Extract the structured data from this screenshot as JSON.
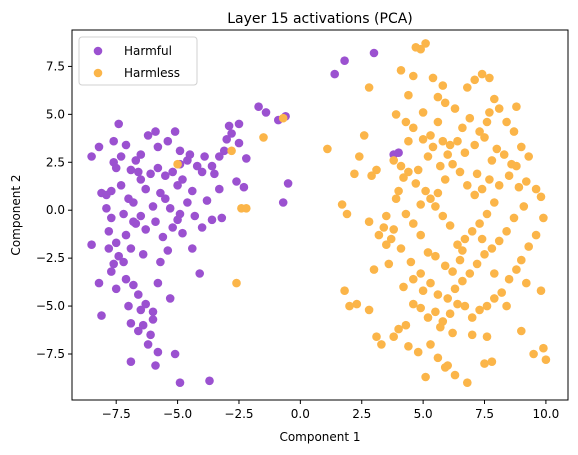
{
  "chart_data": {
    "type": "scatter",
    "title": "Layer 15 activations (PCA)",
    "xlabel": "Component 1",
    "ylabel": "Component 2",
    "xlim": [
      -9.3,
      10.9
    ],
    "ylim": [
      -9.9,
      9.4
    ],
    "xticks": [
      -7.5,
      -5.0,
      -2.5,
      0.0,
      2.5,
      5.0,
      7.5,
      10.0
    ],
    "xtick_labels": [
      "−7.5",
      "−5.0",
      "−2.5",
      "0.0",
      "2.5",
      "5.0",
      "7.5",
      "10.0"
    ],
    "yticks": [
      -7.5,
      -5.0,
      -2.5,
      0.0,
      2.5,
      5.0,
      7.5
    ],
    "ytick_labels": [
      "−7.5",
      "−5.0",
      "−2.5",
      "0.0",
      "2.5",
      "5.0",
      "7.5"
    ],
    "grid": false,
    "legend_position": "top-left",
    "series": [
      {
        "name": "Harmful",
        "color": "#9b51d0",
        "points": [
          [
            -8.5,
            2.8
          ],
          [
            -8.2,
            3.3
          ],
          [
            -8.1,
            0.9
          ],
          [
            -7.9,
            0.8
          ],
          [
            -7.7,
            1.0
          ],
          [
            -7.6,
            2.5
          ],
          [
            -7.5,
            2.2
          ],
          [
            -7.3,
            2.8
          ],
          [
            -7.6,
            3.6
          ],
          [
            -7.4,
            4.5
          ],
          [
            -7.1,
            3.4
          ],
          [
            -6.7,
            2.6
          ],
          [
            -6.9,
            2.1
          ],
          [
            -6.5,
            1.6
          ],
          [
            -6.3,
            1.1
          ],
          [
            -6.8,
            0.4
          ],
          [
            -7.9,
            0.1
          ],
          [
            -7.7,
            -0.4
          ],
          [
            -7.2,
            -0.2
          ],
          [
            -7.0,
            0.6
          ],
          [
            -6.7,
            -0.7
          ],
          [
            -6.5,
            -0.3
          ],
          [
            -6.3,
            -1.0
          ],
          [
            -7.8,
            -1.1
          ],
          [
            -7.5,
            -1.7
          ],
          [
            -7.8,
            -2.0
          ],
          [
            -7.4,
            -2.4
          ],
          [
            -7.6,
            -2.8
          ],
          [
            -7.2,
            -2.7
          ],
          [
            -6.9,
            -2.0
          ],
          [
            -8.5,
            -1.8
          ],
          [
            -8.2,
            -3.8
          ],
          [
            -8.1,
            -5.5
          ],
          [
            -7.7,
            -3.2
          ],
          [
            -7.5,
            -4.1
          ],
          [
            -7.1,
            -3.6
          ],
          [
            -6.8,
            -3.9
          ],
          [
            -6.6,
            -4.4
          ],
          [
            -7.0,
            -5.0
          ],
          [
            -6.5,
            -5.2
          ],
          [
            -6.3,
            -4.9
          ],
          [
            -6.0,
            -5.3
          ],
          [
            -6.9,
            -5.9
          ],
          [
            -6.6,
            -6.3
          ],
          [
            -6.4,
            -6.0
          ],
          [
            -6.1,
            -6.5
          ],
          [
            -6.2,
            -7.0
          ],
          [
            -5.8,
            -7.4
          ],
          [
            -6.9,
            -7.9
          ],
          [
            -5.9,
            -8.1
          ],
          [
            -5.1,
            -7.5
          ],
          [
            -4.9,
            -9.0
          ],
          [
            -3.7,
            -8.9
          ],
          [
            -6.0,
            -5.7
          ],
          [
            -5.8,
            -3.8
          ],
          [
            -5.3,
            -4.6
          ],
          [
            -4.1,
            -3.3
          ],
          [
            -4.4,
            -2.0
          ],
          [
            -4.8,
            -1.2
          ],
          [
            -5.2,
            -0.9
          ],
          [
            -5.6,
            -1.4
          ],
          [
            -5.9,
            -0.6
          ],
          [
            -6.0,
            0.2
          ],
          [
            -5.5,
            0.6
          ],
          [
            -5.3,
            0.1
          ],
          [
            -4.9,
            -0.2
          ],
          [
            -4.6,
            0.4
          ],
          [
            -4.3,
            -0.3
          ],
          [
            -4.0,
            -0.9
          ],
          [
            -3.6,
            -0.5
          ],
          [
            -3.2,
            -0.4
          ],
          [
            -5.0,
            1.3
          ],
          [
            -5.5,
            1.8
          ],
          [
            -5.8,
            2.2
          ],
          [
            -5.2,
            2.0
          ],
          [
            -4.8,
            1.6
          ],
          [
            -4.4,
            1.0
          ],
          [
            -4.9,
            2.4
          ],
          [
            -4.6,
            2.6
          ],
          [
            -4.2,
            2.3
          ],
          [
            -3.9,
            2.8
          ],
          [
            -3.6,
            2.3
          ],
          [
            -3.3,
            2.8
          ],
          [
            -3.0,
            3.7
          ],
          [
            -2.8,
            4.0
          ],
          [
            -2.5,
            3.5
          ],
          [
            -2.2,
            2.7
          ],
          [
            -2.6,
            1.5
          ],
          [
            -3.3,
            1.1
          ],
          [
            -3.8,
            0.5
          ],
          [
            -5.8,
            3.3
          ],
          [
            -5.4,
            3.6
          ],
          [
            -5.1,
            4.1
          ],
          [
            -4.9,
            3.1
          ],
          [
            -4.5,
            2.9
          ],
          [
            -4.0,
            2.0
          ],
          [
            -3.5,
            1.9
          ],
          [
            -6.2,
            3.9
          ],
          [
            -6.5,
            2.9
          ],
          [
            -5.9,
            4.1
          ],
          [
            -2.9,
            4.4
          ],
          [
            -2.3,
            1.2
          ],
          [
            -1.7,
            5.4
          ],
          [
            -1.4,
            5.1
          ],
          [
            -0.9,
            4.7
          ],
          [
            -0.6,
            4.9
          ],
          [
            -0.7,
            0.4
          ],
          [
            -0.5,
            1.4
          ],
          [
            -2.5,
            4.5
          ],
          [
            -3.1,
            3.1
          ],
          [
            -7.3,
            1.3
          ],
          [
            -6.6,
            2.0
          ],
          [
            -6.1,
            1.9
          ],
          [
            -5.7,
            0.9
          ],
          [
            -5.0,
            -0.5
          ],
          [
            -6.4,
            -2.3
          ],
          [
            -7.1,
            -1.3
          ],
          [
            -6.8,
            -0.6
          ],
          [
            -5.4,
            -2.1
          ],
          [
            -5.7,
            -2.7
          ],
          [
            1.8,
            7.8
          ],
          [
            1.4,
            7.1
          ],
          [
            3.0,
            8.2
          ],
          [
            3.8,
            2.9
          ],
          [
            4.0,
            3.0
          ]
        ]
      },
      {
        "name": "Harmless",
        "color": "#fbb549",
        "points": [
          [
            -5.0,
            2.4
          ],
          [
            -2.8,
            3.1
          ],
          [
            -2.4,
            0.1
          ],
          [
            -2.2,
            0.1
          ],
          [
            -2.6,
            -3.8
          ],
          [
            -1.5,
            3.8
          ],
          [
            -0.7,
            4.8
          ],
          [
            1.1,
            3.2
          ],
          [
            1.7,
            0.3
          ],
          [
            1.9,
            -0.2
          ],
          [
            1.8,
            -4.2
          ],
          [
            2.0,
            -5.0
          ],
          [
            2.2,
            1.9
          ],
          [
            2.4,
            2.8
          ],
          [
            2.6,
            3.9
          ],
          [
            2.9,
            1.8
          ],
          [
            3.1,
            2.1
          ],
          [
            2.8,
            -0.6
          ],
          [
            3.2,
            -1.3
          ],
          [
            3.4,
            -0.9
          ],
          [
            3.6,
            -2.8
          ],
          [
            2.8,
            -5.2
          ],
          [
            3.1,
            -6.6
          ],
          [
            3.3,
            -7.0
          ],
          [
            2.3,
            -4.9
          ],
          [
            3.0,
            -3.1
          ],
          [
            2.8,
            6.4
          ],
          [
            3.5,
            -1.8
          ],
          [
            3.7,
            -1.5
          ],
          [
            3.9,
            0.6
          ],
          [
            4.0,
            1.0
          ],
          [
            4.2,
            1.7
          ],
          [
            4.4,
            3.6
          ],
          [
            4.6,
            4.3
          ],
          [
            4.1,
            7.3
          ],
          [
            4.6,
            7.0
          ],
          [
            4.9,
            8.4
          ],
          [
            5.1,
            8.7
          ],
          [
            4.7,
            8.5
          ],
          [
            5.4,
            6.9
          ],
          [
            5.6,
            5.9
          ],
          [
            5.9,
            5.6
          ],
          [
            5.6,
            4.6
          ],
          [
            5.3,
            3.9
          ],
          [
            5.0,
            3.7
          ],
          [
            5.8,
            3.6
          ],
          [
            6.1,
            3.4
          ],
          [
            6.4,
            3.6
          ],
          [
            6.7,
            3.0
          ],
          [
            7.1,
            3.4
          ],
          [
            7.5,
            3.8
          ],
          [
            7.8,
            2.6
          ],
          [
            8.1,
            1.3
          ],
          [
            8.5,
            1.8
          ],
          [
            8.8,
            2.3
          ],
          [
            9.2,
            1.5
          ],
          [
            9.6,
            1.1
          ],
          [
            9.8,
            0.7
          ],
          [
            9.9,
            -0.4
          ],
          [
            9.6,
            -1.3
          ],
          [
            9.3,
            -1.9
          ],
          [
            9.0,
            -2.6
          ],
          [
            8.8,
            -3.1
          ],
          [
            8.5,
            -3.6
          ],
          [
            8.2,
            -4.3
          ],
          [
            7.9,
            -4.6
          ],
          [
            7.6,
            -5.0
          ],
          [
            7.3,
            -5.2
          ],
          [
            7.0,
            -5.6
          ],
          [
            6.7,
            -5.0
          ],
          [
            6.4,
            -4.9
          ],
          [
            6.1,
            -5.4
          ],
          [
            5.8,
            -5.8
          ],
          [
            5.5,
            -5.3
          ],
          [
            5.2,
            -5.6
          ],
          [
            4.9,
            -5.1
          ],
          [
            4.6,
            -4.9
          ],
          [
            4.3,
            -6.0
          ],
          [
            4.0,
            -6.2
          ],
          [
            3.8,
            -6.6
          ],
          [
            4.4,
            -7.1
          ],
          [
            4.8,
            -7.4
          ],
          [
            5.3,
            -7.0
          ],
          [
            5.6,
            -7.7
          ],
          [
            5.9,
            -8.2
          ],
          [
            6.3,
            -8.6
          ],
          [
            6.8,
            -9.0
          ],
          [
            7.5,
            -8.0
          ],
          [
            7.8,
            -7.9
          ],
          [
            9.5,
            -7.5
          ],
          [
            9.9,
            -7.2
          ],
          [
            10.0,
            -7.8
          ],
          [
            9.8,
            -4.2
          ],
          [
            9.2,
            -3.8
          ],
          [
            5.1,
            -8.7
          ],
          [
            6.0,
            -8.1
          ],
          [
            7.0,
            -6.5
          ],
          [
            7.6,
            -6.6
          ],
          [
            6.5,
            -2.6
          ],
          [
            6.2,
            -3.2
          ],
          [
            5.9,
            -2.9
          ],
          [
            5.5,
            -2.4
          ],
          [
            5.2,
            -2.2
          ],
          [
            4.9,
            -1.3
          ],
          [
            4.6,
            -0.7
          ],
          [
            4.3,
            -0.2
          ],
          [
            4.9,
            0.3
          ],
          [
            5.3,
            0.6
          ],
          [
            5.6,
            0.9
          ],
          [
            5.9,
            1.6
          ],
          [
            6.2,
            2.4
          ],
          [
            6.5,
            2.0
          ],
          [
            6.8,
            1.3
          ],
          [
            7.1,
            0.8
          ],
          [
            7.4,
            1.1
          ],
          [
            7.7,
            1.6
          ],
          [
            7.9,
            0.4
          ],
          [
            7.6,
            -0.2
          ],
          [
            7.3,
            -0.7
          ],
          [
            7.0,
            -1.1
          ],
          [
            6.7,
            -1.5
          ],
          [
            6.4,
            -1.8
          ],
          [
            6.1,
            -0.8
          ],
          [
            5.8,
            -0.3
          ],
          [
            5.5,
            0.2
          ],
          [
            5.1,
            1.0
          ],
          [
            4.7,
            1.4
          ],
          [
            4.4,
            2.0
          ],
          [
            4.1,
            2.3
          ],
          [
            3.8,
            2.6
          ],
          [
            6.8,
            6.4
          ],
          [
            7.1,
            6.8
          ],
          [
            7.4,
            7.1
          ],
          [
            7.7,
            6.9
          ],
          [
            7.9,
            5.8
          ],
          [
            8.1,
            5.3
          ],
          [
            8.4,
            4.6
          ],
          [
            8.7,
            4.1
          ],
          [
            9.0,
            3.3
          ],
          [
            9.3,
            2.8
          ],
          [
            6.9,
            4.8
          ],
          [
            7.3,
            4.1
          ],
          [
            7.6,
            4.6
          ],
          [
            8.0,
            3.2
          ],
          [
            8.3,
            2.9
          ],
          [
            8.6,
            2.4
          ],
          [
            8.9,
            1.2
          ],
          [
            9.1,
            0.2
          ],
          [
            8.7,
            -0.4
          ],
          [
            8.4,
            -1.1
          ],
          [
            8.1,
            -1.6
          ],
          [
            7.8,
            -2.0
          ],
          [
            7.5,
            -2.3
          ],
          [
            7.2,
            -2.8
          ],
          [
            6.9,
            -3.3
          ],
          [
            6.6,
            -3.7
          ],
          [
            6.3,
            -4.1
          ],
          [
            6.0,
            -4.6
          ],
          [
            5.6,
            -4.4
          ],
          [
            5.3,
            -3.8
          ],
          [
            4.9,
            -3.3
          ],
          [
            4.5,
            -2.7
          ],
          [
            4.1,
            -2.0
          ],
          [
            3.8,
            -1.0
          ],
          [
            3.5,
            -0.3
          ],
          [
            4.2,
            -4.0
          ],
          [
            4.6,
            -3.6
          ],
          [
            5.0,
            -4.2
          ],
          [
            5.7,
            -6.1
          ],
          [
            6.2,
            -6.4
          ],
          [
            7.9,
            -3.3
          ],
          [
            8.4,
            -5.0
          ],
          [
            9.0,
            -6.3
          ],
          [
            6.6,
            -2.1
          ],
          [
            7.4,
            -1.5
          ],
          [
            3.9,
            5.0
          ],
          [
            4.4,
            6.0
          ],
          [
            5.0,
            5.1
          ],
          [
            5.8,
            6.5
          ],
          [
            6.3,
            5.3
          ],
          [
            5.2,
            2.8
          ],
          [
            6.0,
            2.9
          ],
          [
            6.6,
            4.3
          ],
          [
            5.4,
            3.3
          ],
          [
            4.8,
            2.1
          ],
          [
            7.7,
            5.1
          ],
          [
            8.8,
            5.4
          ],
          [
            4.3,
            4.6
          ],
          [
            5.7,
            2.3
          ],
          [
            7.2,
            1.9
          ]
        ]
      }
    ]
  }
}
